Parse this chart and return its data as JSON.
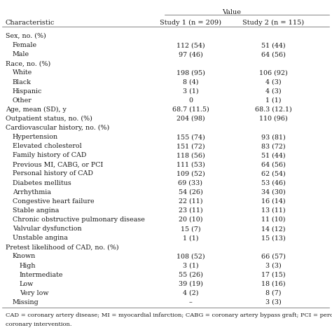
{
  "title": "Value",
  "col_headers": [
    "Characteristic",
    "Study 1 (n = 209)",
    "Study 2 (n = 115)"
  ],
  "rows": [
    {
      "label": "Sex, no. (%)",
      "indent": 0,
      "s1": "",
      "s2": "",
      "section_header": true
    },
    {
      "label": "Female",
      "indent": 1,
      "s1": "112 (54)",
      "s2": "51 (44)"
    },
    {
      "label": "Male",
      "indent": 1,
      "s1": "97 (46)",
      "s2": "64 (56)"
    },
    {
      "label": "Race, no. (%)",
      "indent": 0,
      "s1": "",
      "s2": "",
      "section_header": true
    },
    {
      "label": "White",
      "indent": 1,
      "s1": "198 (95)",
      "s2": "106 (92)"
    },
    {
      "label": "Black",
      "indent": 1,
      "s1": "8 (4)",
      "s2": "4 (3)"
    },
    {
      "label": "Hispanic",
      "indent": 1,
      "s1": "3 (1)",
      "s2": "4 (3)"
    },
    {
      "label": "Other",
      "indent": 1,
      "s1": "0",
      "s2": "1 (1)"
    },
    {
      "label": "Age, mean (SD), y",
      "indent": 0,
      "s1": "68.7 (11.5)",
      "s2": "68.3 (12.1)"
    },
    {
      "label": "Outpatient status, no. (%)",
      "indent": 0,
      "s1": "204 (98)",
      "s2": "110 (96)"
    },
    {
      "label": "Cardiovascular history, no. (%)",
      "indent": 0,
      "s1": "",
      "s2": "",
      "section_header": true
    },
    {
      "label": "Hypertension",
      "indent": 1,
      "s1": "155 (74)",
      "s2": "93 (81)"
    },
    {
      "label": "Elevated cholesterol",
      "indent": 1,
      "s1": "151 (72)",
      "s2": "83 (72)"
    },
    {
      "label": "Family history of CAD",
      "indent": 1,
      "s1": "118 (56)",
      "s2": "51 (44)"
    },
    {
      "label": "Previous MI, CABG, or PCI",
      "indent": 1,
      "s1": "111 (53)",
      "s2": "64 (56)"
    },
    {
      "label": "Personal history of CAD",
      "indent": 1,
      "s1": "109 (52)",
      "s2": "62 (54)"
    },
    {
      "label": "Diabetes mellitus",
      "indent": 1,
      "s1": "69 (33)",
      "s2": "53 (46)"
    },
    {
      "label": "Arrhythmia",
      "indent": 1,
      "s1": "54 (26)",
      "s2": "34 (30)"
    },
    {
      "label": "Congestive heart failure",
      "indent": 1,
      "s1": "22 (11)",
      "s2": "16 (14)"
    },
    {
      "label": "Stable angina",
      "indent": 1,
      "s1": "23 (11)",
      "s2": "13 (11)"
    },
    {
      "label": "Chronic obstructive pulmonary disease",
      "indent": 1,
      "s1": "20 (10)",
      "s2": "11 (10)"
    },
    {
      "label": "Valvular dysfunction",
      "indent": 1,
      "s1": "15 (7)",
      "s2": "14 (12)"
    },
    {
      "label": "Unstable angina",
      "indent": 1,
      "s1": "1 (1)",
      "s2": "15 (13)"
    },
    {
      "label": "Pretest likelihood of CAD, no. (%)",
      "indent": 0,
      "s1": "",
      "s2": "",
      "section_header": true
    },
    {
      "label": "Known",
      "indent": 1,
      "s1": "108 (52)",
      "s2": "66 (57)"
    },
    {
      "label": "High",
      "indent": 2,
      "s1": "3 (1)",
      "s2": "3 (3)"
    },
    {
      "label": "Intermediate",
      "indent": 2,
      "s1": "55 (26)",
      "s2": "17 (15)"
    },
    {
      "label": "Low",
      "indent": 2,
      "s1": "39 (19)",
      "s2": "18 (16)"
    },
    {
      "label": "Very low",
      "indent": 2,
      "s1": "4 (2)",
      "s2": "8 (7)"
    },
    {
      "label": "Missing",
      "indent": 1,
      "s1": "–",
      "s2": "3 (3)"
    }
  ],
  "footnote1": "CAD = coronary artery disease; MI = myocardial infarction; CABG = coronary artery bypass graft; PCI = percutaneous",
  "footnote2": "coronary intervention.",
  "bg_color": "#ffffff",
  "text_color": "#1a1a1a",
  "font_size": 6.8,
  "header_font_size": 7.0
}
